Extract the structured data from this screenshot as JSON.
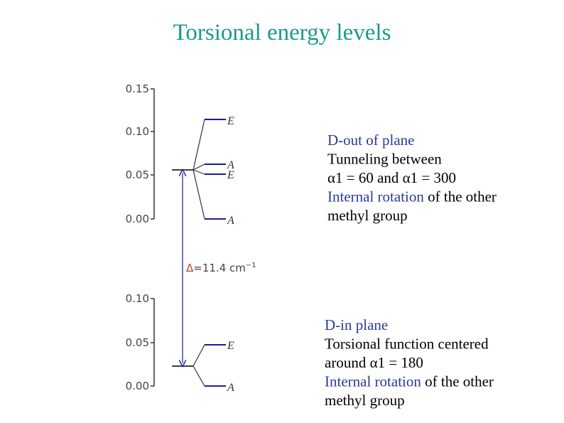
{
  "title": "Torsional energy levels",
  "upper_diagram": {
    "ticks": [
      "0.15",
      "0.10",
      "0.05",
      "0.00"
    ],
    "levels": [
      "E",
      "A",
      "E",
      "A"
    ]
  },
  "lower_diagram": {
    "ticks": [
      "0.10",
      "0.05",
      "0.00"
    ],
    "levels": [
      "E",
      "A"
    ]
  },
  "splitting": {
    "symbol": "Δ",
    "value": "=11.4 cm",
    "exponent": "−1"
  },
  "upper_text": {
    "lines": [
      [
        "D-out of plane"
      ],
      [
        "Tunneling between"
      ],
      [
        "α1 = 60 and α1 = 300"
      ],
      [
        "Internal rotation",
        " of the other"
      ],
      [
        "methyl group"
      ]
    ]
  },
  "lower_text": {
    "lines": [
      [
        "D-in plane"
      ],
      [
        "Torsional function centered"
      ],
      [
        "around α1 = 180"
      ],
      [
        "Internal rotation",
        " of the other"
      ],
      [
        "methyl group"
      ]
    ]
  }
}
